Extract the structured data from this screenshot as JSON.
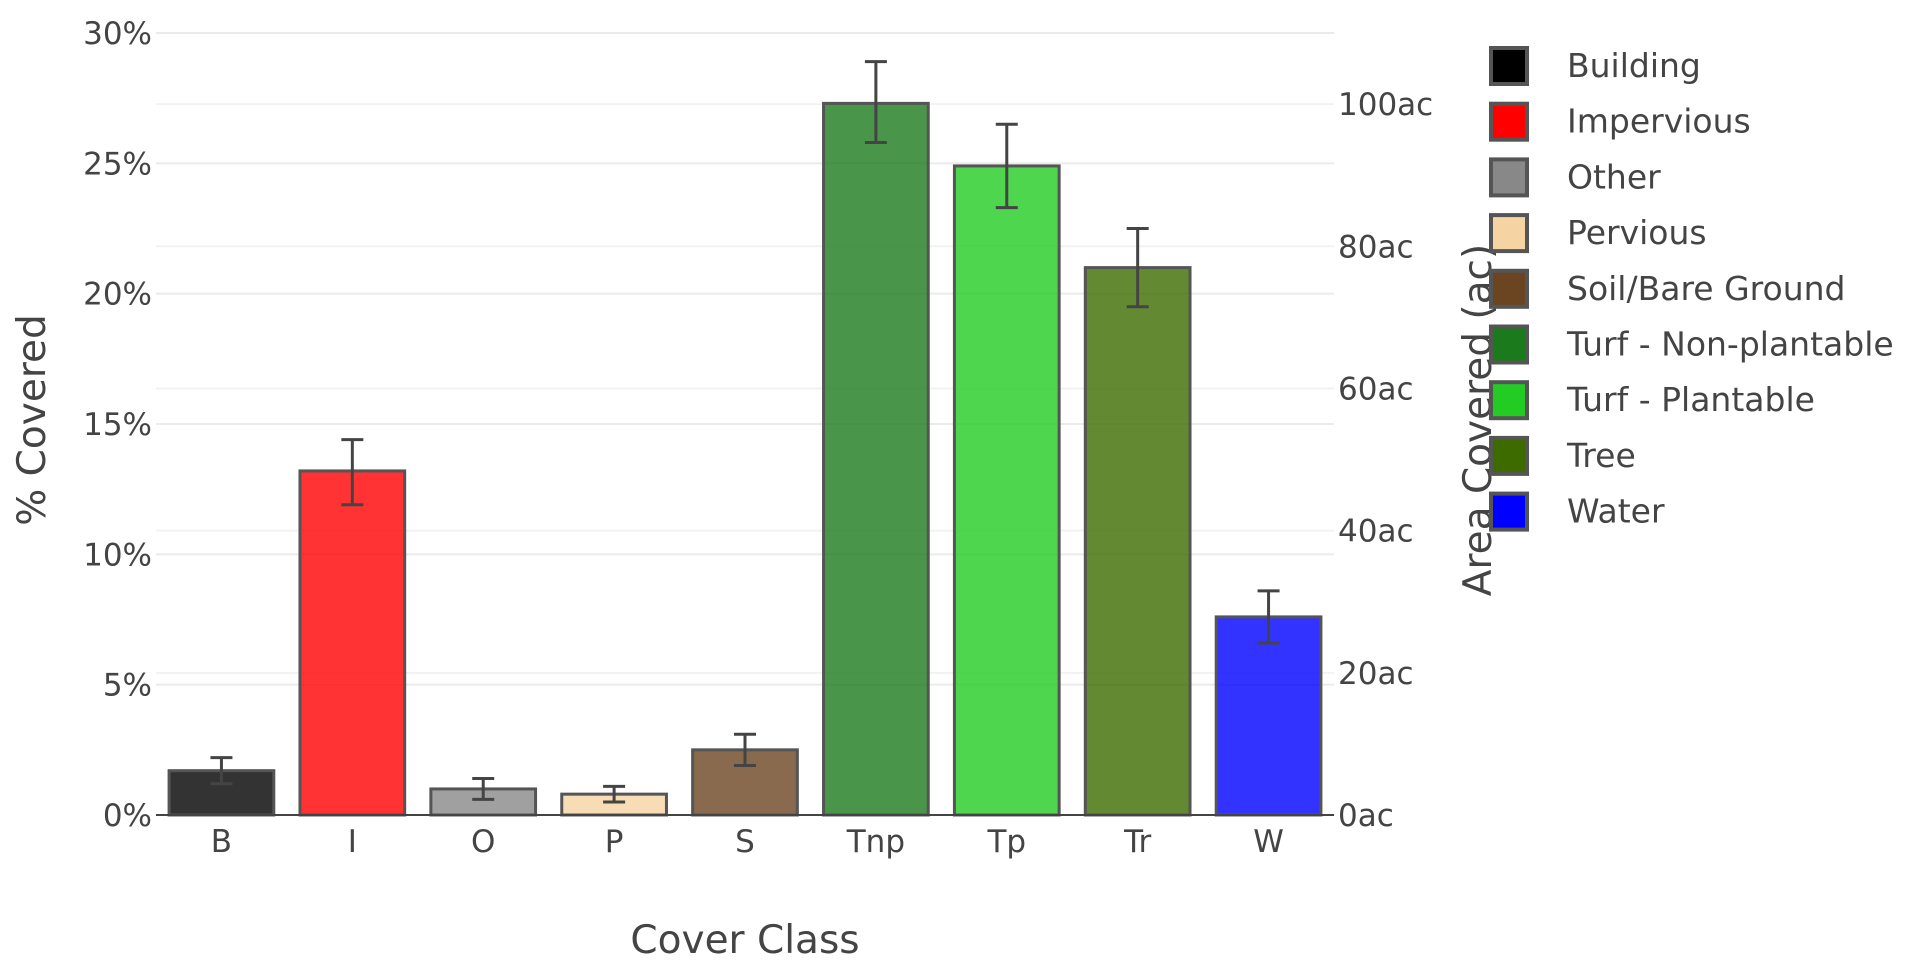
{
  "chart_data": {
    "type": "bar",
    "categories": [
      "B",
      "I",
      "O",
      "P",
      "S",
      "Tnp",
      "Tp",
      "Tr",
      "W"
    ],
    "values": [
      1.7,
      13.2,
      1.0,
      0.8,
      2.5,
      27.3,
      24.9,
      21.0,
      7.6
    ],
    "error_low": [
      1.2,
      11.9,
      0.6,
      0.5,
      1.9,
      25.8,
      23.3,
      19.5,
      6.6
    ],
    "error_high": [
      2.2,
      14.4,
      1.4,
      1.1,
      3.1,
      28.9,
      26.5,
      22.5,
      8.6
    ],
    "colors": [
      "#000000",
      "#ff0000",
      "#888888",
      "#f5d3a3",
      "#6b4522",
      "#1b7a1b",
      "#22cc22",
      "#3d6b00",
      "#0000ff"
    ],
    "bar_opacity": 0.8,
    "xlabel": "Cover Class",
    "ylabel": "% Covered",
    "y2label": "Area Covered (ac)",
    "ylim": [
      0,
      30
    ],
    "y_ticks": [
      "0%",
      "5%",
      "10%",
      "15%",
      "20%",
      "25%",
      "30%"
    ],
    "y2lim": [
      0,
      110
    ],
    "y2_ticks": [
      "0ac",
      "20ac",
      "40ac",
      "60ac",
      "80ac",
      "100ac"
    ],
    "grid": true,
    "legend_position": "right",
    "legend": [
      {
        "label": "Building",
        "color": "#000000"
      },
      {
        "label": "Impervious",
        "color": "#ff0000"
      },
      {
        "label": "Other",
        "color": "#888888"
      },
      {
        "label": "Pervious",
        "color": "#f5d3a3"
      },
      {
        "label": "Soil/Bare Ground",
        "color": "#6b4522"
      },
      {
        "label": "Turf - Non-plantable",
        "color": "#1b7a1b"
      },
      {
        "label": "Turf - Plantable",
        "color": "#22cc22"
      },
      {
        "label": "Tree",
        "color": "#3d6b00"
      },
      {
        "label": "Water",
        "color": "#0000ff"
      }
    ]
  }
}
